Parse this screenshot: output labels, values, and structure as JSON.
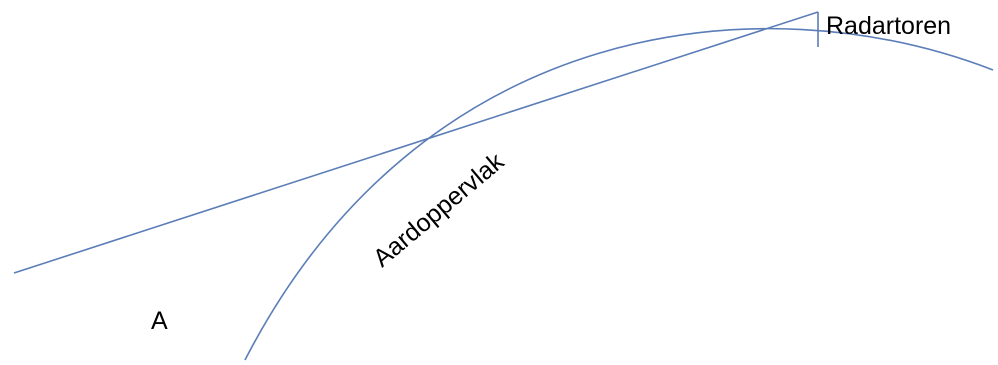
{
  "labels": {
    "tower": "Radartoren",
    "surface": "Aardoppervlak",
    "point": "A"
  },
  "colors": {
    "line": "#5B7DB8",
    "text": "#000000",
    "background": "#FFFFFF"
  }
}
